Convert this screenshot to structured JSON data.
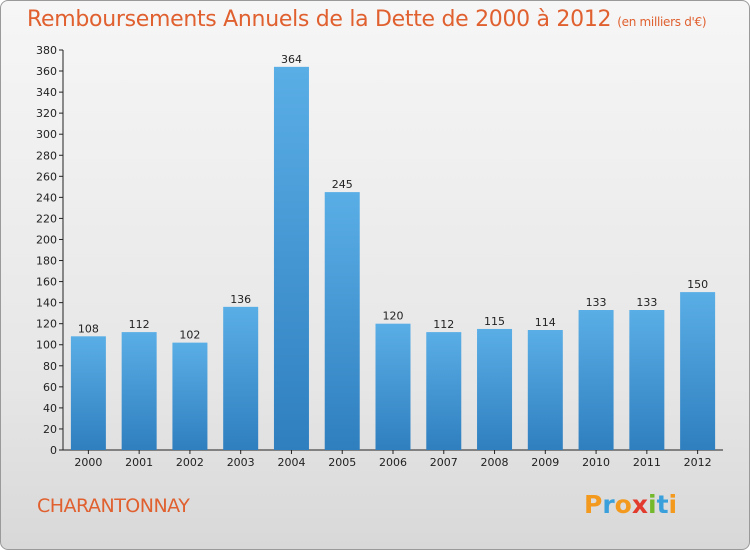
{
  "title": "Remboursements Annuels de la Dette de 2000 à 2012",
  "unit": "(en milliers d'€)",
  "place": "CHARANTONNAY",
  "logo": {
    "letters": [
      "P",
      "r",
      "o",
      "x",
      "i",
      "t",
      "i"
    ],
    "colors": [
      "#f39a1e",
      "#3aa0dc",
      "#f39a1e",
      "#e23a2d",
      "#74b82c",
      "#3aa0dc",
      "#f39a1e"
    ]
  },
  "colors": {
    "bar_light": "#5aaee6",
    "bar_dark": "#2f7fbf",
    "text": "#e0602f"
  },
  "chart_data": {
    "type": "bar",
    "categories": [
      "2000",
      "2001",
      "2002",
      "2003",
      "2004",
      "2005",
      "2006",
      "2007",
      "2008",
      "2009",
      "2010",
      "2011",
      "2012"
    ],
    "values": [
      108,
      112,
      102,
      136,
      364,
      245,
      120,
      112,
      115,
      114,
      133,
      133,
      150
    ],
    "ylim": [
      0,
      380
    ],
    "yticks": [
      0,
      20,
      40,
      60,
      80,
      100,
      120,
      140,
      160,
      180,
      200,
      220,
      240,
      260,
      280,
      300,
      320,
      340,
      360,
      380
    ],
    "grid": false
  }
}
